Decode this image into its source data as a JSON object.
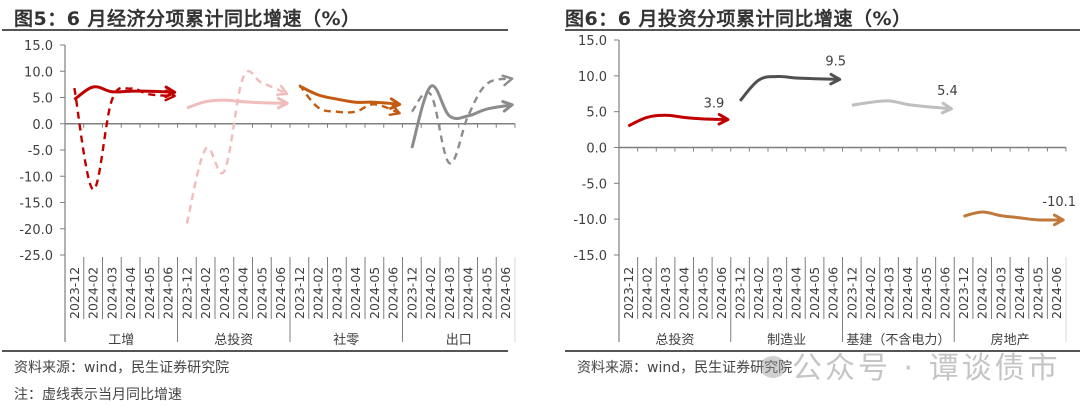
{
  "left": {
    "title": "图5：6 月经济分项累计同比增速（%）",
    "source": "资料来源：wind，民生证券研究院",
    "note": "注：虚线表示当月同比增速"
  },
  "right": {
    "title": "图6：6 月投资分项累计同比增速（%）",
    "source": "资料来源：wind，民生证券研究院"
  },
  "watermark": {
    "text": "公众号 · 谭谈债市"
  },
  "chart_data": [
    {
      "type": "line",
      "title": "图5：6 月经济分项累计同比增速（%）",
      "xlabel": "",
      "ylabel": "%",
      "ylim": [
        -25,
        15
      ],
      "yticks": [
        "15.0",
        "10.0",
        "5.0",
        "0.0",
        "-5.0",
        "-10.0",
        "-15.0",
        "-20.0",
        "-25.0"
      ],
      "grid": false,
      "legend": "none",
      "groups": [
        "工增",
        "总投资",
        "社零",
        "出口"
      ],
      "categories": [
        "2023-12",
        "2024-02",
        "2024-03",
        "2024-04",
        "2024-05",
        "2024-06"
      ],
      "annotation": "虚线表示当月同比增速",
      "series": [
        {
          "group": "工增",
          "name": "工增累计同比",
          "style": "solid",
          "color": "#C00000",
          "values": [
            4.6,
            7.0,
            6.1,
            6.2,
            6.2,
            6.0
          ]
        },
        {
          "group": "工增",
          "name": "工增当月同比",
          "style": "dashed",
          "color": "#C00000",
          "values": [
            6.8,
            -12.5,
            4.5,
            6.7,
            5.6,
            5.3
          ]
        },
        {
          "group": "总投资",
          "name": "总投资累计同比",
          "style": "solid",
          "color": "#F0BCBC",
          "values": [
            3.0,
            4.2,
            4.5,
            4.2,
            4.0,
            3.9
          ]
        },
        {
          "group": "总投资",
          "name": "总投资当月同比",
          "style": "dashed",
          "color": "#F0BCBC",
          "values": [
            -19.0,
            -4.8,
            -9.0,
            8.8,
            7.8,
            5.7
          ]
        },
        {
          "group": "社零",
          "name": "社零累计同比",
          "style": "solid",
          "color": "#C55A11",
          "values": [
            7.2,
            5.5,
            4.7,
            4.1,
            4.1,
            3.7
          ]
        },
        {
          "group": "社零",
          "name": "社零当月同比",
          "style": "dashed",
          "color": "#C55A11",
          "values": [
            7.4,
            3.1,
            2.3,
            2.3,
            3.7,
            2.0
          ]
        },
        {
          "group": "出口",
          "name": "出口累计同比",
          "style": "solid",
          "color": "#8C8C8C",
          "values": [
            -4.6,
            7.1,
            1.5,
            1.5,
            2.8,
            3.6
          ]
        },
        {
          "group": "出口",
          "name": "出口当月同比",
          "style": "dashed",
          "color": "#8C8C8C",
          "values": [
            2.3,
            5.6,
            -7.5,
            1.5,
            7.6,
            8.6
          ]
        }
      ]
    },
    {
      "type": "line",
      "title": "图6：6 月投资分项累计同比增速（%）",
      "xlabel": "",
      "ylabel": "%",
      "ylim": [
        -15,
        15
      ],
      "yticks": [
        "15.0",
        "10.0",
        "5.0",
        "0.0",
        "-5.0",
        "-10.0",
        "-15.0"
      ],
      "grid": false,
      "legend": "none",
      "groups": [
        "总投资",
        "制造业",
        "基建（不含电力）",
        "房地产"
      ],
      "categories": [
        "2023-12",
        "2024-02",
        "2024-03",
        "2024-04",
        "2024-05",
        "2024-06"
      ],
      "series": [
        {
          "group": "总投资",
          "name": "总投资累计同比",
          "style": "solid",
          "color": "#C00000",
          "values": [
            3.0,
            4.2,
            4.5,
            4.2,
            4.0,
            3.9
          ],
          "label": "3.9"
        },
        {
          "group": "制造业",
          "name": "制造业累计同比",
          "style": "solid",
          "color": "#505050",
          "values": [
            6.5,
            9.4,
            9.9,
            9.7,
            9.6,
            9.5
          ],
          "label": "9.5"
        },
        {
          "group": "基建（不含电力）",
          "name": "基建累计同比",
          "style": "solid",
          "color": "#BFBFBF",
          "values": [
            5.9,
            6.3,
            6.5,
            6.0,
            5.7,
            5.4
          ],
          "label": "5.4"
        },
        {
          "group": "房地产",
          "name": "房地产累计同比",
          "style": "solid",
          "color": "#C0793A",
          "values": [
            -9.6,
            -9.0,
            -9.5,
            -9.8,
            -10.1,
            -10.1
          ],
          "label": "-10.1"
        }
      ]
    }
  ]
}
